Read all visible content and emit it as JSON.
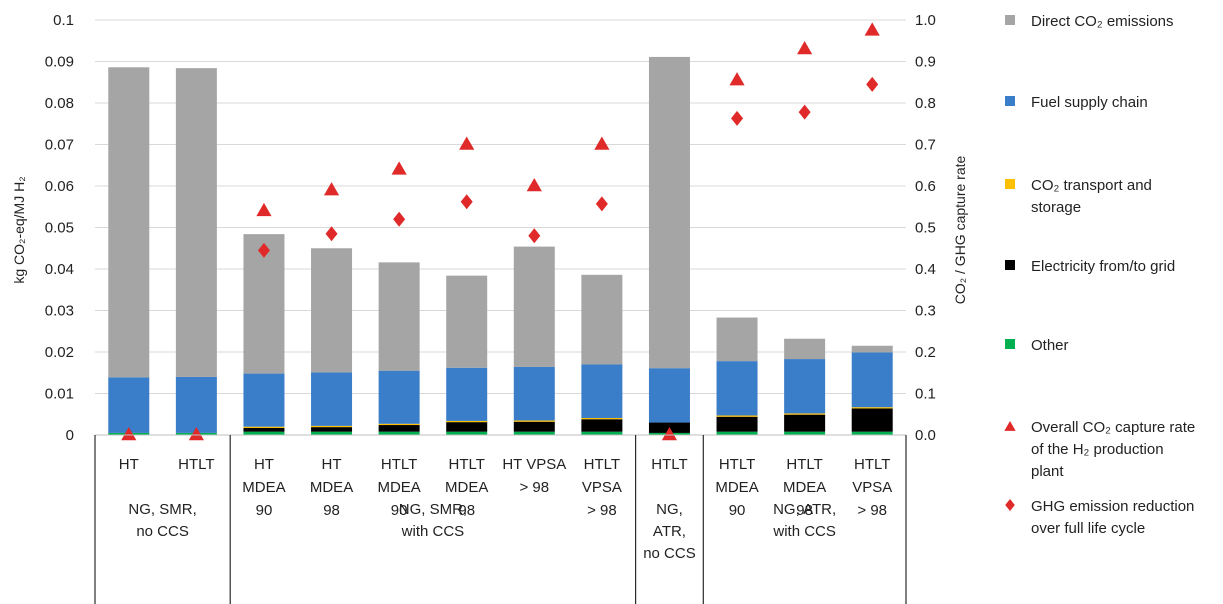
{
  "chart_data": {
    "type": "bar",
    "stacked": true,
    "ylabel": "kg CO₂-eq/MJ H₂",
    "y2label": "CO₂ / GHG capture rate",
    "ylim": [
      0,
      0.1
    ],
    "y2lim": [
      0,
      1.0
    ],
    "yticks": [
      "0",
      "0.01",
      "0.02",
      "0.03",
      "0.04",
      "0.05",
      "0.06",
      "0.07",
      "0.08",
      "0.09",
      "0.1"
    ],
    "y2ticks": [
      "0.0",
      "0.1",
      "0.2",
      "0.3",
      "0.4",
      "0.5",
      "0.6",
      "0.7",
      "0.8",
      "0.9",
      "1.0"
    ],
    "grid": true,
    "legend_position": "right",
    "categories": [
      [
        "HT"
      ],
      [
        "HTLT"
      ],
      [
        "HT",
        "MDEA",
        "90"
      ],
      [
        "HT",
        "MDEA",
        "98"
      ],
      [
        "HTLT",
        "MDEA",
        "90"
      ],
      [
        "HTLT",
        "MDEA",
        "98"
      ],
      [
        "HT VPSA",
        "> 98"
      ],
      [
        "HTLT",
        "VPSA",
        "> 98"
      ],
      [
        "HTLT"
      ],
      [
        "HTLT",
        "MDEA",
        "90"
      ],
      [
        "HTLT",
        "MDEA",
        "98"
      ],
      [
        "HTLT",
        "VPSA",
        "> 98"
      ]
    ],
    "groups": [
      {
        "label": [
          "NG, SMR,",
          "no CCS"
        ],
        "start": 0,
        "end": 1
      },
      {
        "label": [
          "NG, SMR,",
          "with CCS"
        ],
        "start": 2,
        "end": 7
      },
      {
        "label": [
          "NG,",
          "ATR,",
          "no CCS"
        ],
        "start": 8,
        "end": 8
      },
      {
        "label": [
          "NG, ATR,",
          "with CCS"
        ],
        "start": 9,
        "end": 11
      }
    ],
    "series": [
      {
        "name": "Other",
        "color": "#00b050",
        "values": [
          0.0005,
          0.0005,
          0.0008,
          0.0008,
          0.0008,
          0.0008,
          0.0008,
          0.0008,
          0.0005,
          0.0008,
          0.0008,
          0.0008
        ]
      },
      {
        "name": "Electricity from/to grid",
        "color": "#000000",
        "values": [
          0.0,
          0.0,
          0.0009,
          0.0011,
          0.0016,
          0.0023,
          0.0024,
          0.003,
          0.0025,
          0.0036,
          0.0041,
          0.0056
        ]
      },
      {
        "name": "CO₂ transport and storage",
        "color": "#ffc000",
        "values": [
          0.0,
          0.0,
          0.0003,
          0.0003,
          0.0003,
          0.0003,
          0.0003,
          0.0003,
          0.0,
          0.0003,
          0.0003,
          0.0003
        ]
      },
      {
        "name": "Fuel supply chain",
        "color": "#3a7dc9",
        "values": [
          0.0134,
          0.0135,
          0.0128,
          0.0129,
          0.0128,
          0.0128,
          0.0129,
          0.0129,
          0.0131,
          0.0131,
          0.0131,
          0.0132
        ]
      },
      {
        "name": "Direct CO₂ emissions",
        "color": "#a5a5a5",
        "values": [
          0.0747,
          0.0744,
          0.0336,
          0.0299,
          0.0261,
          0.0222,
          0.029,
          0.0216,
          0.075,
          0.0105,
          0.0049,
          0.0016
        ]
      }
    ],
    "markers": [
      {
        "name": "Overall CO₂ capture rate of the H₂ production plant",
        "shape": "triangle",
        "color": "#e02a2a",
        "axis": "y2",
        "values": [
          0.0,
          0.0,
          0.54,
          0.59,
          0.64,
          0.7,
          0.6,
          0.7,
          0.0,
          0.855,
          0.93,
          0.975
        ]
      },
      {
        "name": "GHG emission reduction over full life cycle",
        "shape": "diamond",
        "color": "#e02a2a",
        "axis": "y2",
        "values": [
          null,
          null,
          0.445,
          0.485,
          0.52,
          0.562,
          0.48,
          0.557,
          null,
          0.763,
          0.778,
          0.845
        ]
      }
    ],
    "legend": [
      {
        "label": "Direct CO₂ emissions",
        "lines": [
          "Direct CO₂ emissions"
        ],
        "shape": "square",
        "color": "#a5a5a5"
      },
      {
        "label": "Fuel supply chain",
        "lines": [
          "Fuel supply chain"
        ],
        "shape": "square",
        "color": "#3a7dc9"
      },
      {
        "label": "CO₂ transport and storage",
        "lines": [
          "CO₂ transport and",
          "storage"
        ],
        "shape": "square",
        "color": "#ffc000"
      },
      {
        "label": "Electricity from/to grid",
        "lines": [
          "Electricity from/to grid"
        ],
        "shape": "square",
        "color": "#000000"
      },
      {
        "label": "Other",
        "lines": [
          "Other"
        ],
        "shape": "square",
        "color": "#00b050"
      },
      {
        "label": "Overall CO₂ capture rate of the H₂ production plant",
        "lines": [
          "Overall CO₂ capture rate",
          "of the H₂ production",
          "plant"
        ],
        "shape": "triangle",
        "color": "#e02a2a"
      },
      {
        "label": "GHG emission reduction over full life cycle",
        "lines": [
          "GHG emission reduction",
          "over full life cycle"
        ],
        "shape": "diamond",
        "color": "#e02a2a"
      }
    ]
  }
}
